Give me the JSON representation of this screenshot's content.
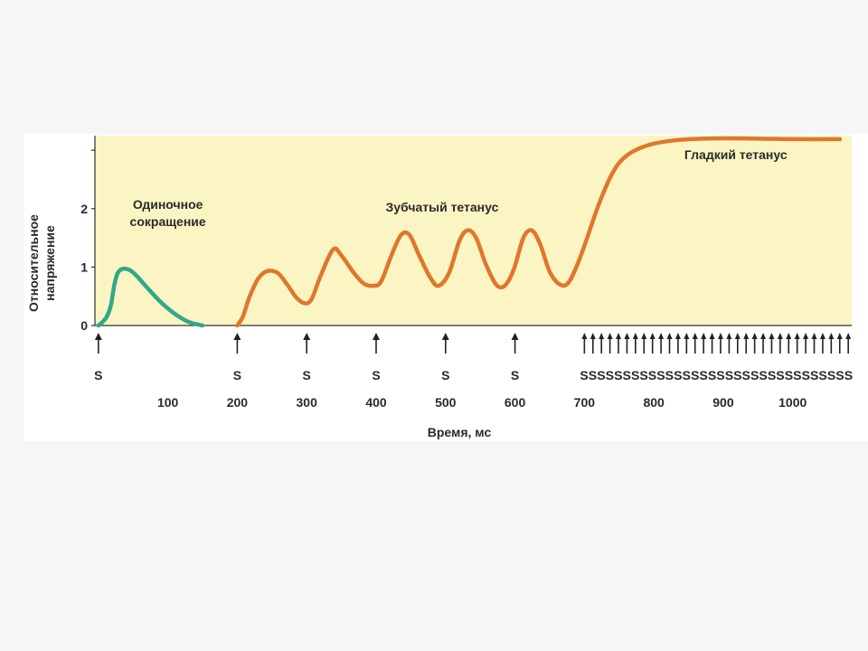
{
  "chart_data": {
    "type": "line",
    "title": "",
    "xlabel": "Время, мс",
    "ylabel_lines": [
      "Относительное",
      "напряжение"
    ],
    "xlim": [
      -5,
      1085
    ],
    "ylim": [
      0,
      3.25
    ],
    "x_ticks": [
      {
        "value": 100,
        "label": "100"
      },
      {
        "value": 200,
        "label": "200"
      },
      {
        "value": 300,
        "label": "300"
      },
      {
        "value": 400,
        "label": "400"
      },
      {
        "value": 500,
        "label": "500"
      },
      {
        "value": 600,
        "label": "600"
      },
      {
        "value": 700,
        "label": "700"
      },
      {
        "value": 800,
        "label": "800"
      },
      {
        "value": 900,
        "label": "900"
      },
      {
        "value": 1000,
        "label": "1000"
      }
    ],
    "y_ticks": [
      {
        "value": 0,
        "label": "0"
      },
      {
        "value": 1,
        "label": "1"
      },
      {
        "value": 2,
        "label": "2"
      },
      {
        "value": 3,
        "label": ""
      }
    ],
    "grid": false,
    "plot_background": "#fbf5c4",
    "series": [
      {
        "color": "#2fa88a",
        "points": [
          [
            0,
            0
          ],
          [
            5,
            0.05
          ],
          [
            12,
            0.15
          ],
          [
            18,
            0.35
          ],
          [
            23,
            0.7
          ],
          [
            28,
            0.9
          ],
          [
            35,
            0.97
          ],
          [
            45,
            0.95
          ],
          [
            55,
            0.85
          ],
          [
            70,
            0.65
          ],
          [
            90,
            0.4
          ],
          [
            110,
            0.2
          ],
          [
            130,
            0.06
          ],
          [
            150,
            0
          ]
        ]
      },
      {
        "color": "#e0772b",
        "points": [
          [
            200,
            0
          ],
          [
            208,
            0.15
          ],
          [
            218,
            0.5
          ],
          [
            230,
            0.8
          ],
          [
            243,
            0.93
          ],
          [
            258,
            0.9
          ],
          [
            272,
            0.7
          ],
          [
            285,
            0.48
          ],
          [
            297,
            0.38
          ],
          [
            307,
            0.45
          ],
          [
            320,
            0.85
          ],
          [
            338,
            1.3
          ],
          [
            350,
            1.2
          ],
          [
            368,
            0.9
          ],
          [
            382,
            0.72
          ],
          [
            395,
            0.68
          ],
          [
            407,
            0.75
          ],
          [
            422,
            1.2
          ],
          [
            436,
            1.55
          ],
          [
            448,
            1.55
          ],
          [
            462,
            1.2
          ],
          [
            478,
            0.82
          ],
          [
            490,
            0.68
          ],
          [
            505,
            0.9
          ],
          [
            520,
            1.45
          ],
          [
            532,
            1.63
          ],
          [
            544,
            1.5
          ],
          [
            558,
            1.05
          ],
          [
            573,
            0.7
          ],
          [
            585,
            0.68
          ],
          [
            598,
            0.95
          ],
          [
            612,
            1.5
          ],
          [
            624,
            1.63
          ],
          [
            636,
            1.4
          ],
          [
            650,
            0.92
          ],
          [
            665,
            0.7
          ],
          [
            678,
            0.75
          ],
          [
            695,
            1.2
          ],
          [
            720,
            2.05
          ],
          [
            740,
            2.6
          ],
          [
            760,
            2.9
          ],
          [
            790,
            3.08
          ],
          [
            830,
            3.17
          ],
          [
            880,
            3.2
          ],
          [
            940,
            3.2
          ],
          [
            1000,
            3.19
          ],
          [
            1068,
            3.19
          ]
        ]
      }
    ],
    "annotations": [
      {
        "text": [
          "Одиночное",
          "сокращение"
        ],
        "x": 100,
        "y": 2.0
      },
      {
        "text": [
          "Зубчатый тетанус"
        ],
        "x": 495,
        "y": 1.95
      },
      {
        "text": [
          "Гладкий тетанус"
        ],
        "x": 918,
        "y": 2.85
      }
    ],
    "stimuli": {
      "single_label": "S",
      "single_times": [
        0,
        200,
        300,
        400,
        500,
        600
      ],
      "train_label": "SSSSSSSSSSSSSSSSSSSSSSSSSSSSSSSS",
      "train_start": 700,
      "train_end": 1080,
      "train_count": 32
    }
  }
}
